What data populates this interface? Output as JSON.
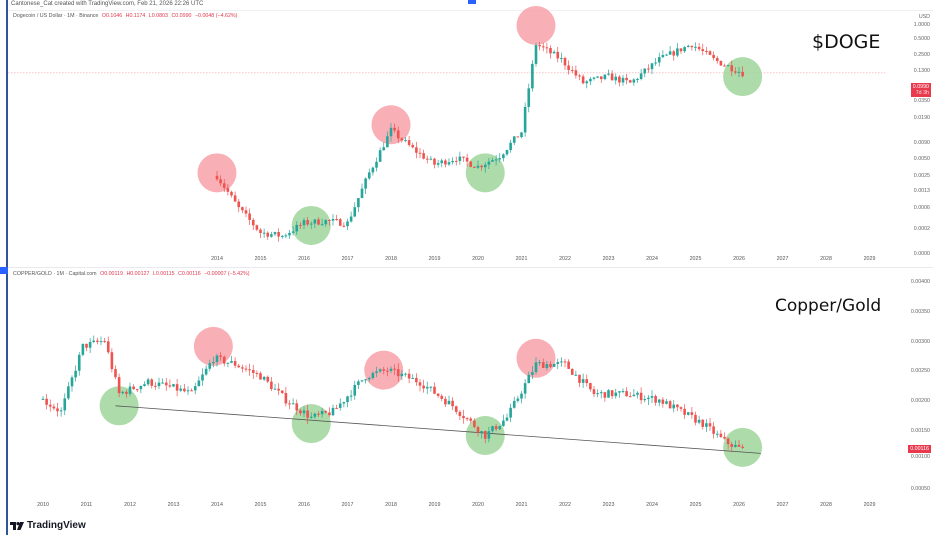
{
  "header": {
    "attribution": "Cantonese_Cat created with TradingView.com, Feb 21, 2026 22:26 UTC"
  },
  "brand": {
    "logo_text": "TradingView"
  },
  "colors": {
    "up": "#26a69a",
    "down": "#ef5350",
    "top_circle": "#f7a1a8",
    "bottom_circle": "#9fd59b",
    "price_tag": "#e8394d",
    "trendline": "#555555"
  },
  "top_chart": {
    "legend": {
      "symbol": "Dogecoin / US Dollar · 1M · Binance",
      "open": "O0.1046",
      "high": "H0.1174",
      "low": "L0.0803",
      "close": "C0.0990",
      "change": "−0.0048 (−4.62%)"
    },
    "label": "$DOGE",
    "y_axis": {
      "unit": "USD",
      "ticks": [
        "1.0000",
        "0.5000",
        "0.2500",
        "0.1300",
        "0.0350",
        "0.0190",
        "0.0090",
        "0.0050",
        "0.0025",
        "0.0013",
        "0.0006",
        "0.0002",
        "0.0000"
      ]
    },
    "price_tag": {
      "value": "0.0990",
      "countdown": "7d 3h"
    },
    "x_axis": [
      "2014",
      "2015",
      "2016",
      "2017",
      "2018",
      "2019",
      "2020",
      "2021",
      "2022",
      "2023",
      "2024",
      "2025",
      "2026",
      "2027",
      "2028",
      "2029"
    ]
  },
  "bottom_chart": {
    "legend": {
      "symbol": "COPPER/GOLD · 1M · Capital.com",
      "open": "O0.00119",
      "high": "H0.00127",
      "low": "L0.00115",
      "close": "C0.00116",
      "change": "−0.00007 (−5.42%)"
    },
    "label": "Copper/Gold",
    "y_axis": {
      "ticks": [
        "0.00400",
        "0.00350",
        "0.00300",
        "0.00250",
        "0.00200",
        "0.00150",
        "0.00100",
        "0.00050"
      ]
    },
    "price_tag": {
      "value": "0.00116"
    },
    "x_axis": [
      "2010",
      "2011",
      "2012",
      "2013",
      "2014",
      "2015",
      "2016",
      "2017",
      "2018",
      "2019",
      "2020",
      "2021",
      "2022",
      "2023",
      "2024",
      "2025",
      "2026",
      "2027",
      "2028",
      "2029"
    ]
  },
  "chart_data": [
    {
      "type": "candlestick",
      "title": "$DOGE",
      "subtitle": "Dogecoin / US Dollar · 1M · Binance",
      "ylabel": "USD",
      "y_scale": "log",
      "xlabel": "",
      "x_ticks": [
        "2014",
        "2015",
        "2016",
        "2017",
        "2018",
        "2019",
        "2020",
        "2021",
        "2022",
        "2023",
        "2024",
        "2025",
        "2026",
        "2027",
        "2028",
        "2029"
      ],
      "y_ticks": [
        1.0,
        0.5,
        0.25,
        0.13,
        0.035,
        0.019,
        0.009,
        0.005,
        0.0025,
        0.0013,
        0.0006,
        0.0002,
        0.0
      ],
      "last_price": 0.099,
      "ohlc_last": {
        "open": 0.1046,
        "high": 0.1174,
        "low": 0.0803,
        "close": 0.099
      },
      "annotations": [
        {
          "type": "top",
          "x": "2014-01",
          "approx_price": 0.0017
        },
        {
          "type": "bottom",
          "x": "2016-03",
          "approx_price": 0.0002
        },
        {
          "type": "top",
          "x": "2018-01",
          "approx_price": 0.012
        },
        {
          "type": "bottom",
          "x": "2020-03",
          "approx_price": 0.0017
        },
        {
          "type": "top",
          "x": "2021-05",
          "approx_price": 0.68
        },
        {
          "type": "bottom",
          "x": "2026-02",
          "approx_price": 0.085
        }
      ],
      "series_approx_close": {
        "x": [
          "2014-01",
          "2014-07",
          "2015-01",
          "2015-07",
          "2016-01",
          "2016-07",
          "2017-01",
          "2017-07",
          "2018-01",
          "2018-07",
          "2019-01",
          "2019-07",
          "2020-01",
          "2020-07",
          "2021-01",
          "2021-05",
          "2021-12",
          "2022-06",
          "2023-01",
          "2023-07",
          "2024-03",
          "2024-12",
          "2025-06",
          "2026-02"
        ],
        "values": [
          0.0015,
          0.0004,
          0.00015,
          0.00013,
          0.00022,
          0.00024,
          0.00022,
          0.0017,
          0.0095,
          0.0045,
          0.0024,
          0.0031,
          0.0022,
          0.0034,
          0.009,
          0.32,
          0.17,
          0.066,
          0.085,
          0.065,
          0.17,
          0.32,
          0.17,
          0.099
        ]
      }
    },
    {
      "type": "candlestick",
      "title": "Copper/Gold",
      "subtitle": "COPPER/GOLD · 1M · Capital.com",
      "y_scale": "linear",
      "ylim": [
        0.0003,
        0.0042
      ],
      "x_ticks": [
        "2010",
        "2011",
        "2012",
        "2013",
        "2014",
        "2015",
        "2016",
        "2017",
        "2018",
        "2019",
        "2020",
        "2021",
        "2022",
        "2023",
        "2024",
        "2025",
        "2026",
        "2027",
        "2028",
        "2029"
      ],
      "y_ticks": [
        0.004,
        0.0035,
        0.003,
        0.0025,
        0.002,
        0.0015,
        0.001,
        0.0005
      ],
      "last_price": 0.00116,
      "ohlc_last": {
        "open": 0.00119,
        "high": 0.00127,
        "low": 0.00115,
        "close": 0.00116
      },
      "trendline": {
        "from": {
          "x": "2011-09",
          "y": 0.0019
        },
        "to": {
          "x": "2026-07",
          "y": 0.0011
        }
      },
      "annotations": [
        {
          "type": "bottom",
          "x": "2011-10",
          "approx_value": 0.0019
        },
        {
          "type": "top",
          "x": "2013-12",
          "approx_value": 0.0029
        },
        {
          "type": "bottom",
          "x": "2016-03",
          "approx_value": 0.0016
        },
        {
          "type": "top",
          "x": "2017-11",
          "approx_value": 0.0025
        },
        {
          "type": "bottom",
          "x": "2020-03",
          "approx_value": 0.0014
        },
        {
          "type": "top",
          "x": "2021-05",
          "approx_value": 0.0027
        },
        {
          "type": "bottom",
          "x": "2026-02",
          "approx_value": 0.0012
        }
      ],
      "series_approx_close": {
        "x": [
          "2010-01",
          "2010-06",
          "2010-12",
          "2011-06",
          "2011-10",
          "2012-06",
          "2013-01",
          "2013-06",
          "2013-12",
          "2014-06",
          "2015-01",
          "2015-08",
          "2016-03",
          "2016-09",
          "2017-06",
          "2017-12",
          "2018-09",
          "2019-06",
          "2020-03",
          "2020-09",
          "2021-05",
          "2022-01",
          "2022-09",
          "2023-06",
          "2024-03",
          "2024-09",
          "2025-03",
          "2025-09",
          "2026-02"
        ],
        "values": [
          0.002,
          0.0018,
          0.0029,
          0.003,
          0.0021,
          0.0023,
          0.0022,
          0.0021,
          0.0027,
          0.0026,
          0.0024,
          0.002,
          0.0017,
          0.0018,
          0.0024,
          0.0025,
          0.0023,
          0.0019,
          0.0014,
          0.0017,
          0.0026,
          0.0026,
          0.0021,
          0.0021,
          0.002,
          0.0018,
          0.0016,
          0.0013,
          0.00116
        ]
      }
    }
  ]
}
